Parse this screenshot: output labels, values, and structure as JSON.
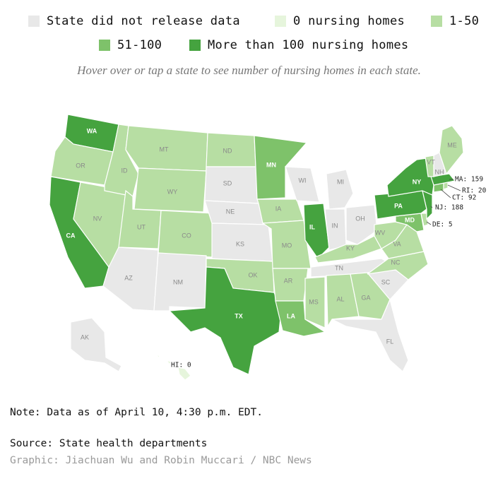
{
  "legend": [
    {
      "label": "State did not release data",
      "color": "#e8e8e8"
    },
    {
      "label": "0 nursing homes",
      "color": "#e6f5dc"
    },
    {
      "label": "1-50",
      "color": "#b7dea3"
    },
    {
      "label": "51-100",
      "color": "#7ec26a"
    },
    {
      "label": "More than 100 nursing homes",
      "color": "#45a33f"
    }
  ],
  "instruction": "Hover over or tap a state to see number of nursing homes in each state.",
  "states": [
    {
      "abbr": "WA",
      "category": 4
    },
    {
      "abbr": "OR",
      "category": 2
    },
    {
      "abbr": "CA",
      "category": 4
    },
    {
      "abbr": "NV",
      "category": 2
    },
    {
      "abbr": "ID",
      "category": 2
    },
    {
      "abbr": "MT",
      "category": 2
    },
    {
      "abbr": "WY",
      "category": 2
    },
    {
      "abbr": "UT",
      "category": 2
    },
    {
      "abbr": "CO",
      "category": 2
    },
    {
      "abbr": "AZ",
      "category": 0
    },
    {
      "abbr": "NM",
      "category": 0
    },
    {
      "abbr": "ND",
      "category": 2
    },
    {
      "abbr": "SD",
      "category": 0
    },
    {
      "abbr": "NE",
      "category": 0
    },
    {
      "abbr": "KS",
      "category": 0
    },
    {
      "abbr": "OK",
      "category": 2
    },
    {
      "abbr": "TX",
      "category": 4
    },
    {
      "abbr": "MN",
      "category": 3
    },
    {
      "abbr": "IA",
      "category": 2
    },
    {
      "abbr": "MO",
      "category": 2
    },
    {
      "abbr": "AR",
      "category": 2
    },
    {
      "abbr": "LA",
      "category": 3
    },
    {
      "abbr": "WI",
      "category": 0
    },
    {
      "abbr": "IL",
      "category": 4
    },
    {
      "abbr": "MI",
      "category": 0
    },
    {
      "abbr": "IN",
      "category": 0
    },
    {
      "abbr": "OH",
      "category": 0
    },
    {
      "abbr": "KY",
      "category": 2
    },
    {
      "abbr": "TN",
      "category": 0
    },
    {
      "abbr": "MS",
      "category": 2
    },
    {
      "abbr": "AL",
      "category": 2
    },
    {
      "abbr": "GA",
      "category": 2
    },
    {
      "abbr": "FL",
      "category": 0
    },
    {
      "abbr": "SC",
      "category": 0
    },
    {
      "abbr": "NC",
      "category": 2
    },
    {
      "abbr": "VA",
      "category": 2
    },
    {
      "abbr": "WV",
      "category": 2
    },
    {
      "abbr": "MD",
      "category": 3
    },
    {
      "abbr": "DE",
      "category": 2
    },
    {
      "abbr": "PA",
      "category": 4
    },
    {
      "abbr": "NJ",
      "category": 4
    },
    {
      "abbr": "NY",
      "category": 4
    },
    {
      "abbr": "CT",
      "category": 3
    },
    {
      "abbr": "RI",
      "category": 2
    },
    {
      "abbr": "MA",
      "category": 4
    },
    {
      "abbr": "VT",
      "category": 2
    },
    {
      "abbr": "NH",
      "category": 0
    },
    {
      "abbr": "ME",
      "category": 2
    },
    {
      "abbr": "AK",
      "category": 0
    },
    {
      "abbr": "HI",
      "category": 1
    }
  ],
  "callouts": [
    {
      "text": "MA: 159"
    },
    {
      "text": "RI: 20"
    },
    {
      "text": "CT: 92"
    },
    {
      "text": "NJ: 188"
    },
    {
      "text": "DE: 5"
    },
    {
      "text": "HI: 0"
    }
  ],
  "note": "Note: Data as of April 10, 4:30 p.m. EDT.",
  "source": "Source: State health departments",
  "credit": "Graphic: Jiachuan Wu and Robin Muccari / NBC News"
}
